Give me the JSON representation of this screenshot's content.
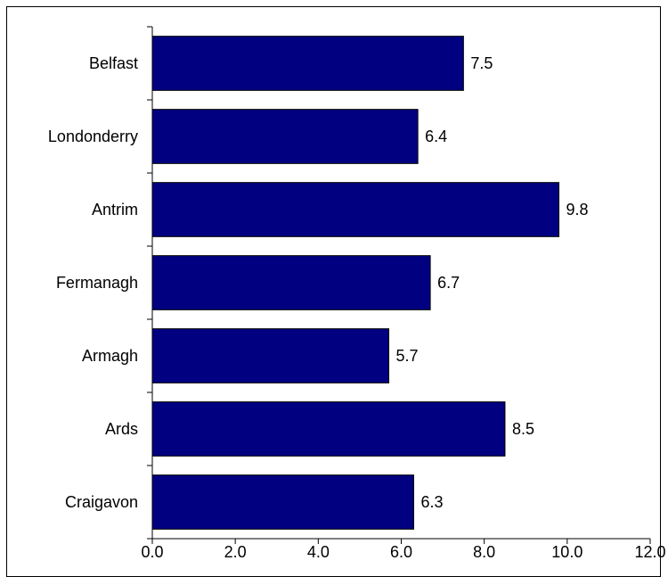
{
  "chart_data": {
    "type": "bar",
    "orientation": "horizontal",
    "title": "",
    "xlabel": "",
    "ylabel": "",
    "categories": [
      "Belfast",
      "Londonderry",
      "Antrim",
      "Fermanagh",
      "Armagh",
      "Ards",
      "Craigavon"
    ],
    "values": [
      7.5,
      6.4,
      9.8,
      6.7,
      5.7,
      8.5,
      6.3
    ],
    "data_labels": [
      "7.5",
      "6.4",
      "9.8",
      "6.7",
      "5.7",
      "8.5",
      "6.3"
    ],
    "xlim": [
      0,
      12
    ],
    "xticks": [
      0,
      2,
      4,
      6,
      8,
      10,
      12
    ],
    "xtick_labels": [
      "0.0",
      "2.0",
      "4.0",
      "6.0",
      "8.0",
      "10.0",
      "12.0"
    ],
    "grid": false,
    "legend": "none",
    "bar_color": "#000080",
    "bar_edge_color": "#000000"
  }
}
